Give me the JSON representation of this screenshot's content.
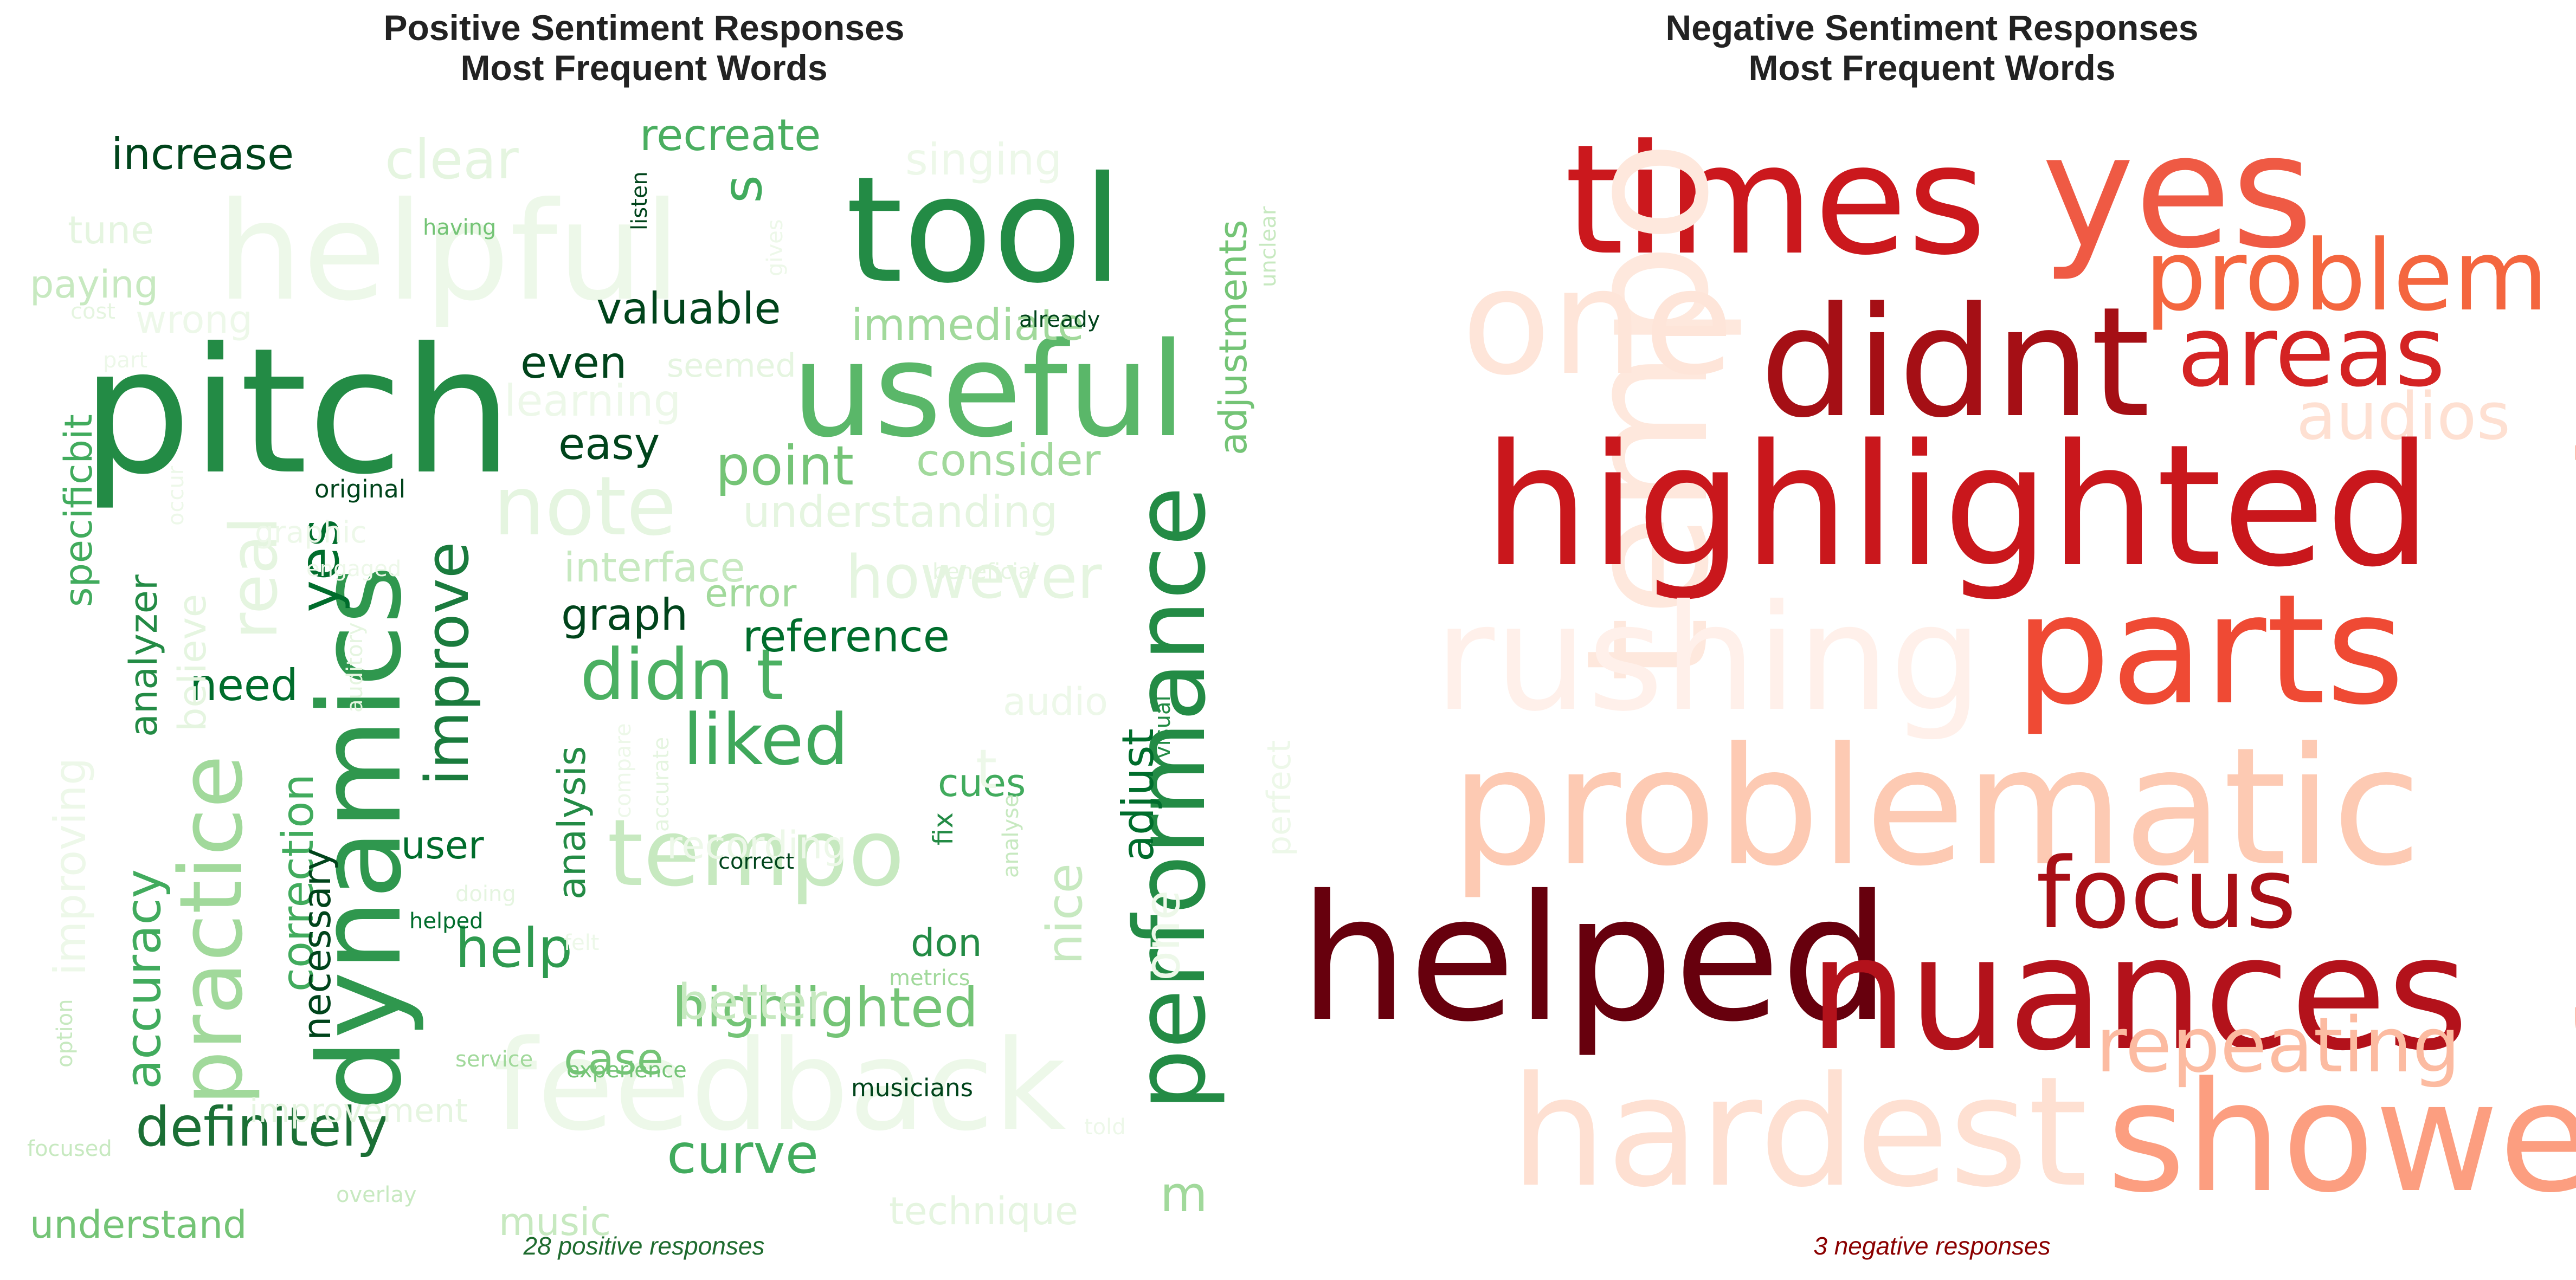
{
  "panels": [
    {
      "title": "Positive Sentiment Responses\nMost Frequent Words",
      "caption": "28 positive responses",
      "caption_color": "#1e6b2e",
      "palette": "Greens",
      "words": [
        {
          "text": "pitch",
          "color": "#238b45"
        },
        {
          "text": "tool",
          "color": "#238b45"
        },
        {
          "text": "helpful",
          "color": "#edf8e9"
        },
        {
          "text": "useful",
          "color": "#5ab769"
        },
        {
          "text": "dynamics",
          "color": "#2f974e"
        },
        {
          "text": "performance",
          "color": "#238b45"
        },
        {
          "text": "feedback",
          "color": "#edf8e9"
        },
        {
          "text": "tempo",
          "color": "#c7e9c0"
        },
        {
          "text": "practice",
          "color": "#a1d99b"
        },
        {
          "text": "note",
          "color": "#e5f5e0"
        },
        {
          "text": "liked",
          "color": "#3fa85b"
        },
        {
          "text": "didn t",
          "color": "#4bb062"
        },
        {
          "text": "improve",
          "color": "#1a7b3d"
        },
        {
          "text": "definitely",
          "color": "#1b6f35"
        },
        {
          "text": "highlighted",
          "color": "#74c476"
        },
        {
          "text": "curve",
          "color": "#41ab5d"
        },
        {
          "text": "help",
          "color": "#2e9a4f"
        },
        {
          "text": "clear",
          "color": "#e5f5e0"
        },
        {
          "text": "increase",
          "color": "#00441b"
        },
        {
          "text": "recreate",
          "color": "#4aae60"
        },
        {
          "text": "valuable",
          "color": "#00441b"
        },
        {
          "text": "immediate",
          "color": "#a1d99b"
        },
        {
          "text": "point",
          "color": "#74c476"
        },
        {
          "text": "consider",
          "color": "#a1d99b"
        },
        {
          "text": "however",
          "color": "#e5f5e0"
        },
        {
          "text": "understanding",
          "color": "#e5f5e0"
        },
        {
          "text": "interface",
          "color": "#c7e9c0"
        },
        {
          "text": "graph",
          "color": "#00441b"
        },
        {
          "text": "error",
          "color": "#a1d99b"
        },
        {
          "text": "reference",
          "color": "#006d2c"
        },
        {
          "text": "easy",
          "color": "#00441b"
        },
        {
          "text": "even",
          "color": "#00441b"
        },
        {
          "text": "learning",
          "color": "#edf8e9"
        },
        {
          "text": "seemed",
          "color": "#e5f5e0"
        },
        {
          "text": "singing",
          "color": "#edf8e9"
        },
        {
          "text": "adjustments",
          "color": "#74c476"
        },
        {
          "text": "s",
          "color": "#41ab5d"
        },
        {
          "text": "yes",
          "color": "#006d2c"
        },
        {
          "text": "need",
          "color": "#006d2c"
        },
        {
          "text": "analyzer",
          "color": "#238b45"
        },
        {
          "text": "accuracy",
          "color": "#41ab5d"
        },
        {
          "text": "specificbit",
          "color": "#41ab5d"
        },
        {
          "text": "improving",
          "color": "#edf8e9"
        },
        {
          "text": "real",
          "color": "#e5f5e0"
        },
        {
          "text": "believe",
          "color": "#e5f5e0"
        },
        {
          "text": "correction",
          "color": "#41ab5d"
        },
        {
          "text": "necessary",
          "color": "#00441b"
        },
        {
          "text": "user",
          "color": "#006d2c"
        },
        {
          "text": "analysis",
          "color": "#238b45"
        },
        {
          "text": "recording",
          "color": "#edf8e9"
        },
        {
          "text": "better",
          "color": "#c7e9c0"
        },
        {
          "text": "case",
          "color": "#74c476"
        },
        {
          "text": "don",
          "color": "#238b45"
        },
        {
          "text": "nice",
          "color": "#c7e9c0"
        },
        {
          "text": "cues",
          "color": "#41ab5d"
        },
        {
          "text": "adjust",
          "color": "#006d2c"
        },
        {
          "text": "fix",
          "color": "#238b45"
        },
        {
          "text": "audio",
          "color": "#edf8e9"
        },
        {
          "text": "t",
          "color": "#edf8e9"
        },
        {
          "text": "one",
          "color": "#edf8e9"
        },
        {
          "text": "m",
          "color": "#a1d99b"
        },
        {
          "text": "music",
          "color": "#c7e9c0"
        },
        {
          "text": "technique",
          "color": "#e5f5e0"
        },
        {
          "text": "understand",
          "color": "#74c476"
        },
        {
          "text": "improvement",
          "color": "#e5f5e0"
        },
        {
          "text": "paying",
          "color": "#c7e9c0"
        },
        {
          "text": "tune",
          "color": "#e5f5e0"
        },
        {
          "text": "wrong",
          "color": "#edf8e9"
        },
        {
          "text": "graphic",
          "color": "#edf8e9"
        },
        {
          "text": "original",
          "color": "#00441b"
        },
        {
          "text": "engaged",
          "color": "#edf8e9"
        },
        {
          "text": "beneficial",
          "color": "#e5f5e0"
        },
        {
          "text": "already",
          "color": "#00441b"
        },
        {
          "text": "having",
          "color": "#74c476"
        },
        {
          "text": "listen",
          "color": "#00441b"
        },
        {
          "text": "gives",
          "color": "#edf8e9"
        },
        {
          "text": "unclear",
          "color": "#c7e9c0"
        },
        {
          "text": "cost",
          "color": "#e5f5e0"
        },
        {
          "text": "part",
          "color": "#edf8e9"
        },
        {
          "text": "occur",
          "color": "#edf8e9"
        },
        {
          "text": "auditory",
          "color": "#e5f5e0"
        },
        {
          "text": "compare",
          "color": "#edf8e9"
        },
        {
          "text": "accurate",
          "color": "#e5f5e0"
        },
        {
          "text": "correct",
          "color": "#00441b"
        },
        {
          "text": "analyse",
          "color": "#c7e9c0"
        },
        {
          "text": "visual",
          "color": "#238b45"
        },
        {
          "text": "perfect",
          "color": "#edf8e9"
        },
        {
          "text": "doing",
          "color": "#e5f5e0"
        },
        {
          "text": "helped",
          "color": "#006d2c"
        },
        {
          "text": "felt",
          "color": "#edf8e9"
        },
        {
          "text": "metrics",
          "color": "#a1d99b"
        },
        {
          "text": "service",
          "color": "#a1d99b"
        },
        {
          "text": "experience",
          "color": "#74c476"
        },
        {
          "text": "musicians",
          "color": "#00441b"
        },
        {
          "text": "option",
          "color": "#c7e9c0"
        },
        {
          "text": "focused",
          "color": "#c7e9c0"
        },
        {
          "text": "overlay",
          "color": "#c7e9c0"
        },
        {
          "text": "told",
          "color": "#edf8e9"
        }
      ]
    },
    {
      "title": "Negative Sentiment Responses\nMost Frequent Words",
      "caption": "3 negative responses",
      "caption_color": "#8b0000",
      "palette": "Reds",
      "words": [
        {
          "text": "times",
          "color": "#cb181d"
        },
        {
          "text": "yes",
          "color": "#ef5a44"
        },
        {
          "text": "problem",
          "color": "#f4663f"
        },
        {
          "text": "tempo",
          "color": "#fee8dd"
        },
        {
          "text": "one",
          "color": "#fee5d9"
        },
        {
          "text": "didnt",
          "color": "#a50f15"
        },
        {
          "text": "areas",
          "color": "#d42323"
        },
        {
          "text": "audios",
          "color": "#fee0d2"
        },
        {
          "text": "highlighted",
          "color": "#c9171c"
        },
        {
          "text": "focused",
          "color": "#fc8a6a"
        },
        {
          "text": "rushing",
          "color": "#fff0ea"
        },
        {
          "text": "parts",
          "color": "#ef4a34"
        },
        {
          "text": "problematic",
          "color": "#fdcab3"
        },
        {
          "text": "focus",
          "color": "#a80f16"
        },
        {
          "text": "helped",
          "color": "#67000d"
        },
        {
          "text": "nuances",
          "color": "#b3121b"
        },
        {
          "text": "repeating",
          "color": "#fcbba1"
        },
        {
          "text": "hardest",
          "color": "#fee0d2"
        },
        {
          "text": "showed",
          "color": "#fc9e80"
        }
      ]
    }
  ]
}
